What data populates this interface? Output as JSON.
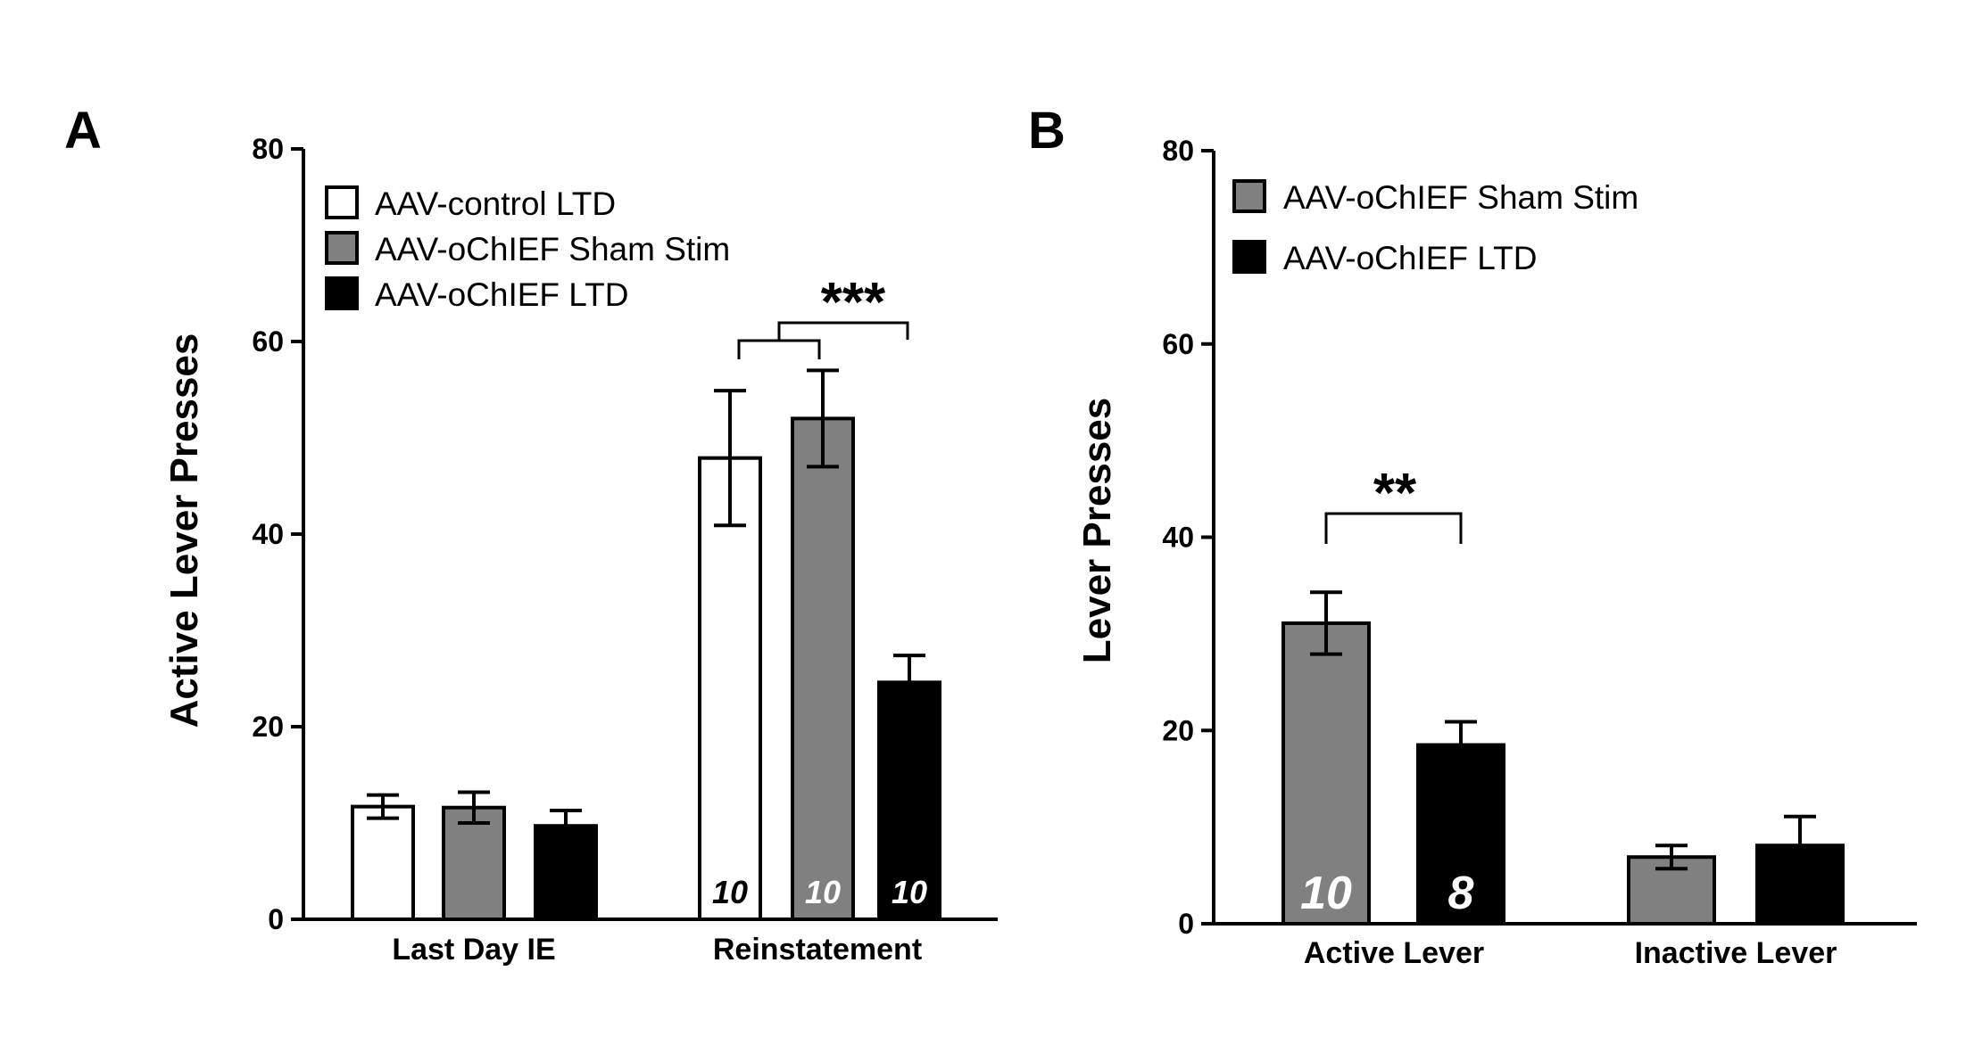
{
  "chart_data": [
    {
      "panel": "A",
      "type": "bar",
      "ylabel": "Active Lever Presses",
      "xlabel": "",
      "ylim": [
        0,
        80
      ],
      "yticks": [
        "0",
        "20",
        "40",
        "60",
        "80"
      ],
      "categories": [
        "Last Day IE",
        "Reinstatement"
      ],
      "series": [
        {
          "name": "AAV-control LTD",
          "color": "#ffffff",
          "values": [
            11.7,
            47.9
          ],
          "errors": [
            1.2,
            7.0
          ],
          "n_labels": [
            "",
            "10"
          ],
          "n_color": "#000000"
        },
        {
          "name": "AAV-oChIEF Sham Stim",
          "color": "#808080",
          "values": [
            11.6,
            52.0
          ],
          "errors": [
            1.6,
            5.0
          ],
          "n_labels": [
            "",
            "10"
          ],
          "n_color": "#ffffff"
        },
        {
          "name": "AAV-oChIEF LTD",
          "color": "#000000",
          "values": [
            9.7,
            24.6
          ],
          "errors": [
            1.6,
            2.8
          ],
          "n_labels": [
            "",
            "10"
          ],
          "n_color": "#ffffff"
        }
      ],
      "significance": [
        {
          "label": "***",
          "category": "Reinstatement"
        }
      ]
    },
    {
      "panel": "B",
      "type": "bar",
      "ylabel": "Lever  Presses",
      "xlabel": "",
      "ylim": [
        0,
        80
      ],
      "yticks": [
        "0",
        "20",
        "40",
        "60",
        "80"
      ],
      "categories": [
        "Active Lever",
        "Inactive Lever"
      ],
      "series": [
        {
          "name": "AAV-oChIEF Sham Stim",
          "color": "#808080",
          "values": [
            31.1,
            6.9
          ],
          "errors": [
            3.2,
            1.2
          ],
          "n_labels": [
            "10",
            ""
          ],
          "n_color": "#ffffff"
        },
        {
          "name": "AAV-oChIEF LTD",
          "color": "#000000",
          "values": [
            18.5,
            8.1
          ],
          "errors": [
            2.4,
            3.0
          ],
          "n_labels": [
            "8",
            ""
          ],
          "n_color": "#ffffff"
        }
      ],
      "significance": [
        {
          "label": "**",
          "category": "Active Lever"
        }
      ]
    }
  ]
}
